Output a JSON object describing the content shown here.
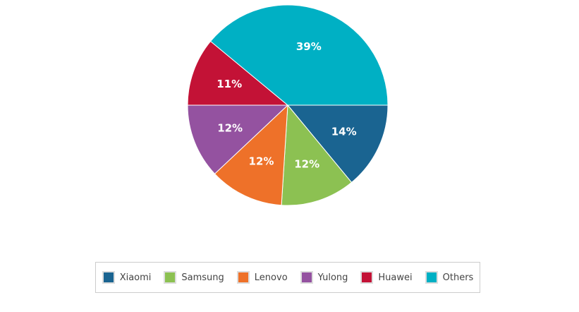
{
  "chart_data": {
    "type": "pie",
    "start_angle": "3 o'clock, clockwise",
    "legend_position": "bottom",
    "slices": [
      {
        "name": "Xiaomi",
        "value": 14,
        "label": "14%",
        "color": "#1a6491"
      },
      {
        "name": "Samsung",
        "value": 12,
        "label": "12%",
        "color": "#8cc152"
      },
      {
        "name": "Lenovo",
        "value": 12,
        "label": "12%",
        "color": "#ee7129"
      },
      {
        "name": "Yulong",
        "value": 12,
        "label": "12%",
        "color": "#9452a0"
      },
      {
        "name": "Huawei",
        "value": 11,
        "label": "11%",
        "color": "#c31236"
      },
      {
        "name": "Others",
        "value": 39,
        "label": "39%",
        "color": "#00b0c4"
      }
    ]
  }
}
